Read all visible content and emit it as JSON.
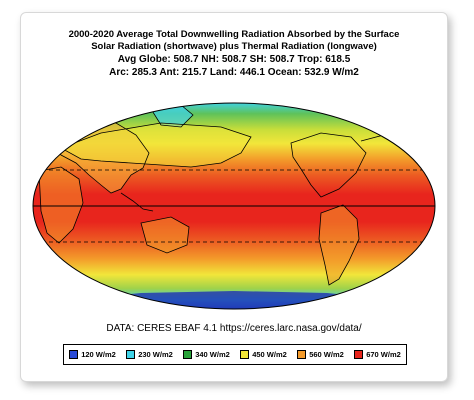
{
  "title": {
    "line1": "2000-2020 Average Total Downwelling Radiation Absorbed by the Surface",
    "line2": "Solar Radiation (shortwave) plus Thermal Radiation (longwave)"
  },
  "stats": {
    "line1": "Avg Globe: 508.7   NH: 508.7   SH: 508.7   Trop: 618.5",
    "line2": "Arc: 285.3   Ant: 215.7   Land: 446.1  Ocean: 532.9 W/m2"
  },
  "source": "DATA: CERES EBAF 4.1 https://ceres.larc.nasa.gov/data/",
  "legend": [
    {
      "label": "120 W/m2",
      "color": "#2a4bd7"
    },
    {
      "label": "230 W/m2",
      "color": "#3fd3e8"
    },
    {
      "label": "340 W/m2",
      "color": "#29a33a"
    },
    {
      "label": "450 W/m2",
      "color": "#f2e63a"
    },
    {
      "label": "560 W/m2",
      "color": "#f39a2a"
    },
    {
      "label": "670 W/m2",
      "color": "#e8251d"
    }
  ],
  "colors": {
    "polar": "#2f6fd6",
    "subpolar": "#3fd3e8",
    "temperate": "#5fc25a",
    "subtropical": "#f2e63a",
    "warm": "#f39a2a",
    "tropical": "#e8251d"
  }
}
